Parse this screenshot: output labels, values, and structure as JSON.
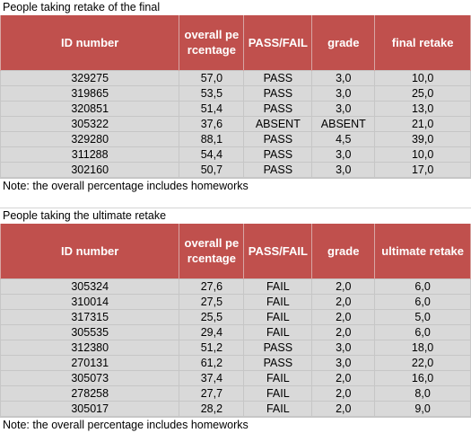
{
  "table1": {
    "title": "People taking retake of the final",
    "headers": [
      "ID number",
      "overall percentage",
      "PASS/FAIL",
      "grade",
      "final retake"
    ],
    "rows": [
      [
        "329275",
        "57,0",
        "PASS",
        "3,0",
        "10,0"
      ],
      [
        "319865",
        "53,5",
        "PASS",
        "3,0",
        "25,0"
      ],
      [
        "320851",
        "51,4",
        "PASS",
        "3,0",
        "13,0"
      ],
      [
        "305322",
        "37,6",
        "ABSENT",
        "ABSENT",
        "21,0"
      ],
      [
        "329280",
        "88,1",
        "PASS",
        "4,5",
        "39,0"
      ],
      [
        "311288",
        "54,4",
        "PASS",
        "3,0",
        "10,0"
      ],
      [
        "302160",
        "50,7",
        "PASS",
        "3,0",
        "17,0"
      ]
    ],
    "note": "Note: the overall percentage includes homeworks"
  },
  "table2": {
    "title": "People taking the ultimate retake",
    "headers": [
      "ID number",
      "overall percentage",
      "PASS/FAIL",
      "grade",
      "ultimate retake"
    ],
    "rows": [
      [
        "305324",
        "27,6",
        "FAIL",
        "2,0",
        "6,0"
      ],
      [
        "310014",
        "27,5",
        "FAIL",
        "2,0",
        "6,0"
      ],
      [
        "317315",
        "25,5",
        "FAIL",
        "2,0",
        "5,0"
      ],
      [
        "305535",
        "29,4",
        "FAIL",
        "2,0",
        "6,0"
      ],
      [
        "312380",
        "51,2",
        "PASS",
        "3,0",
        "18,0"
      ],
      [
        "270131",
        "61,2",
        "PASS",
        "3,0",
        "22,0"
      ],
      [
        "305073",
        "37,4",
        "FAIL",
        "2,0",
        "16,0"
      ],
      [
        "278258",
        "27,7",
        "FAIL",
        "2,0",
        "8,0"
      ],
      [
        "305017",
        "28,2",
        "FAIL",
        "2,0",
        "9,0"
      ]
    ],
    "note": "Note: the overall percentage includes homeworks"
  }
}
